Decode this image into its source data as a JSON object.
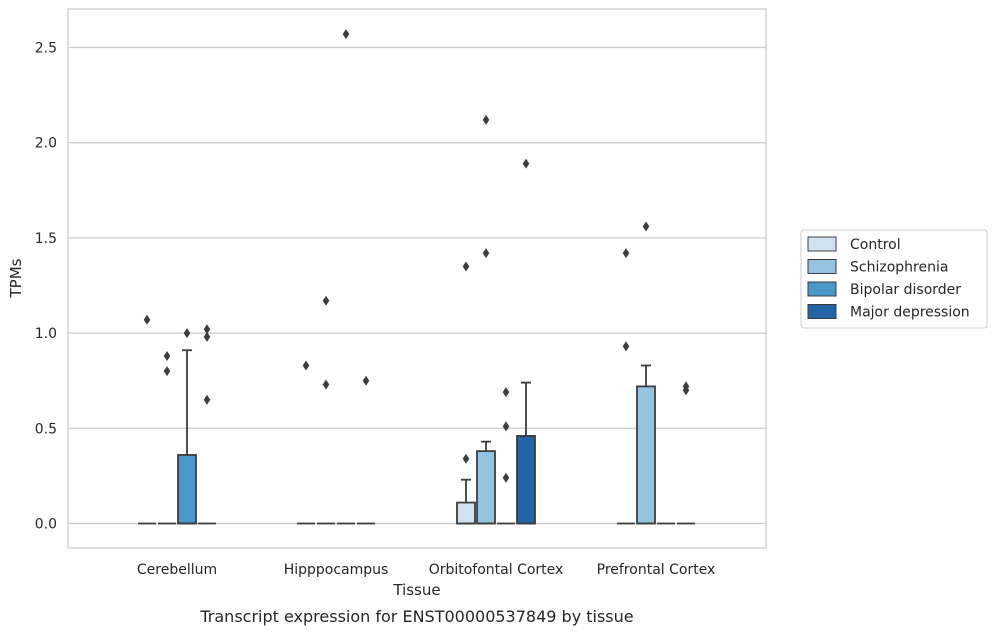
{
  "caption": "Transcript expression for ENST00000537849 by tissue",
  "chart_data": {
    "type": "box",
    "xlabel": "Tissue",
    "ylabel": "TPMs",
    "ylim": [
      -0.12,
      2.7
    ],
    "yticks": [
      0.0,
      0.5,
      1.0,
      1.5,
      2.0,
      2.5
    ],
    "ytick_labels": [
      "0.0",
      "0.5",
      "1.0",
      "1.5",
      "2.0",
      "2.5"
    ],
    "grid": "horizontal",
    "legend_position": "right",
    "categories": [
      "Cerebellum",
      "Hipppocampus",
      "Orbitofontal Cortex",
      "Prefrontal Cortex"
    ],
    "series": [
      {
        "name": "Control",
        "color": "#d0e1f2",
        "boxes": [
          {
            "q1": 0,
            "median": 0,
            "q3": 0,
            "whisker_low": 0,
            "whisker_high": 0,
            "outliers": [
              1.07
            ]
          },
          {
            "q1": 0,
            "median": 0,
            "q3": 0,
            "whisker_low": 0,
            "whisker_high": 0,
            "outliers": [
              0.83
            ]
          },
          {
            "q1": 0,
            "median": 0,
            "q3": 0.11,
            "whisker_low": 0,
            "whisker_high": 0.23,
            "outliers": [
              0.34,
              1.35
            ]
          },
          {
            "q1": 0,
            "median": 0,
            "q3": 0,
            "whisker_low": 0,
            "whisker_high": 0,
            "outliers": [
              0.93,
              1.42
            ]
          }
        ]
      },
      {
        "name": "Schizophrenia",
        "color": "#94c4df",
        "boxes": [
          {
            "q1": 0,
            "median": 0,
            "q3": 0,
            "whisker_low": 0,
            "whisker_high": 0,
            "outliers": [
              0.8,
              0.88
            ]
          },
          {
            "q1": 0,
            "median": 0,
            "q3": 0,
            "whisker_low": 0,
            "whisker_high": 0,
            "outliers": [
              0.73,
              1.17
            ]
          },
          {
            "q1": 0,
            "median": 0,
            "q3": 0.38,
            "whisker_low": 0,
            "whisker_high": 0.43,
            "outliers": [
              1.42,
              2.12
            ]
          },
          {
            "q1": 0,
            "median": 0,
            "q3": 0.72,
            "whisker_low": 0,
            "whisker_high": 0.83,
            "outliers": [
              1.56
            ]
          }
        ]
      },
      {
        "name": "Bipolar disorder",
        "color": "#4a98c9",
        "boxes": [
          {
            "q1": 0,
            "median": 0,
            "q3": 0.36,
            "whisker_low": 0,
            "whisker_high": 0.91,
            "outliers": [
              1.0
            ]
          },
          {
            "q1": 0,
            "median": 0,
            "q3": 0,
            "whisker_low": 0,
            "whisker_high": 0,
            "outliers": [
              2.57
            ]
          },
          {
            "q1": 0,
            "median": 0,
            "q3": 0,
            "whisker_low": 0,
            "whisker_high": 0,
            "outliers": [
              0.24,
              0.51,
              0.69
            ]
          },
          {
            "q1": 0,
            "median": 0,
            "q3": 0,
            "whisker_low": 0,
            "whisker_high": 0,
            "outliers": []
          }
        ]
      },
      {
        "name": "Major depression",
        "color": "#2264a6",
        "boxes": [
          {
            "q1": 0,
            "median": 0,
            "q3": 0,
            "whisker_low": 0,
            "whisker_high": 0,
            "outliers": [
              0.65,
              0.98,
              1.02
            ]
          },
          {
            "q1": 0,
            "median": 0,
            "q3": 0,
            "whisker_low": 0,
            "whisker_high": 0,
            "outliers": [
              0.75
            ]
          },
          {
            "q1": 0,
            "median": 0,
            "q3": 0.46,
            "whisker_low": 0,
            "whisker_high": 0.74,
            "outliers": [
              1.89
            ]
          },
          {
            "q1": 0,
            "median": 0,
            "q3": 0,
            "whisker_low": 0,
            "whisker_high": 0,
            "outliers": [
              0.7,
              0.72
            ]
          }
        ]
      }
    ]
  }
}
